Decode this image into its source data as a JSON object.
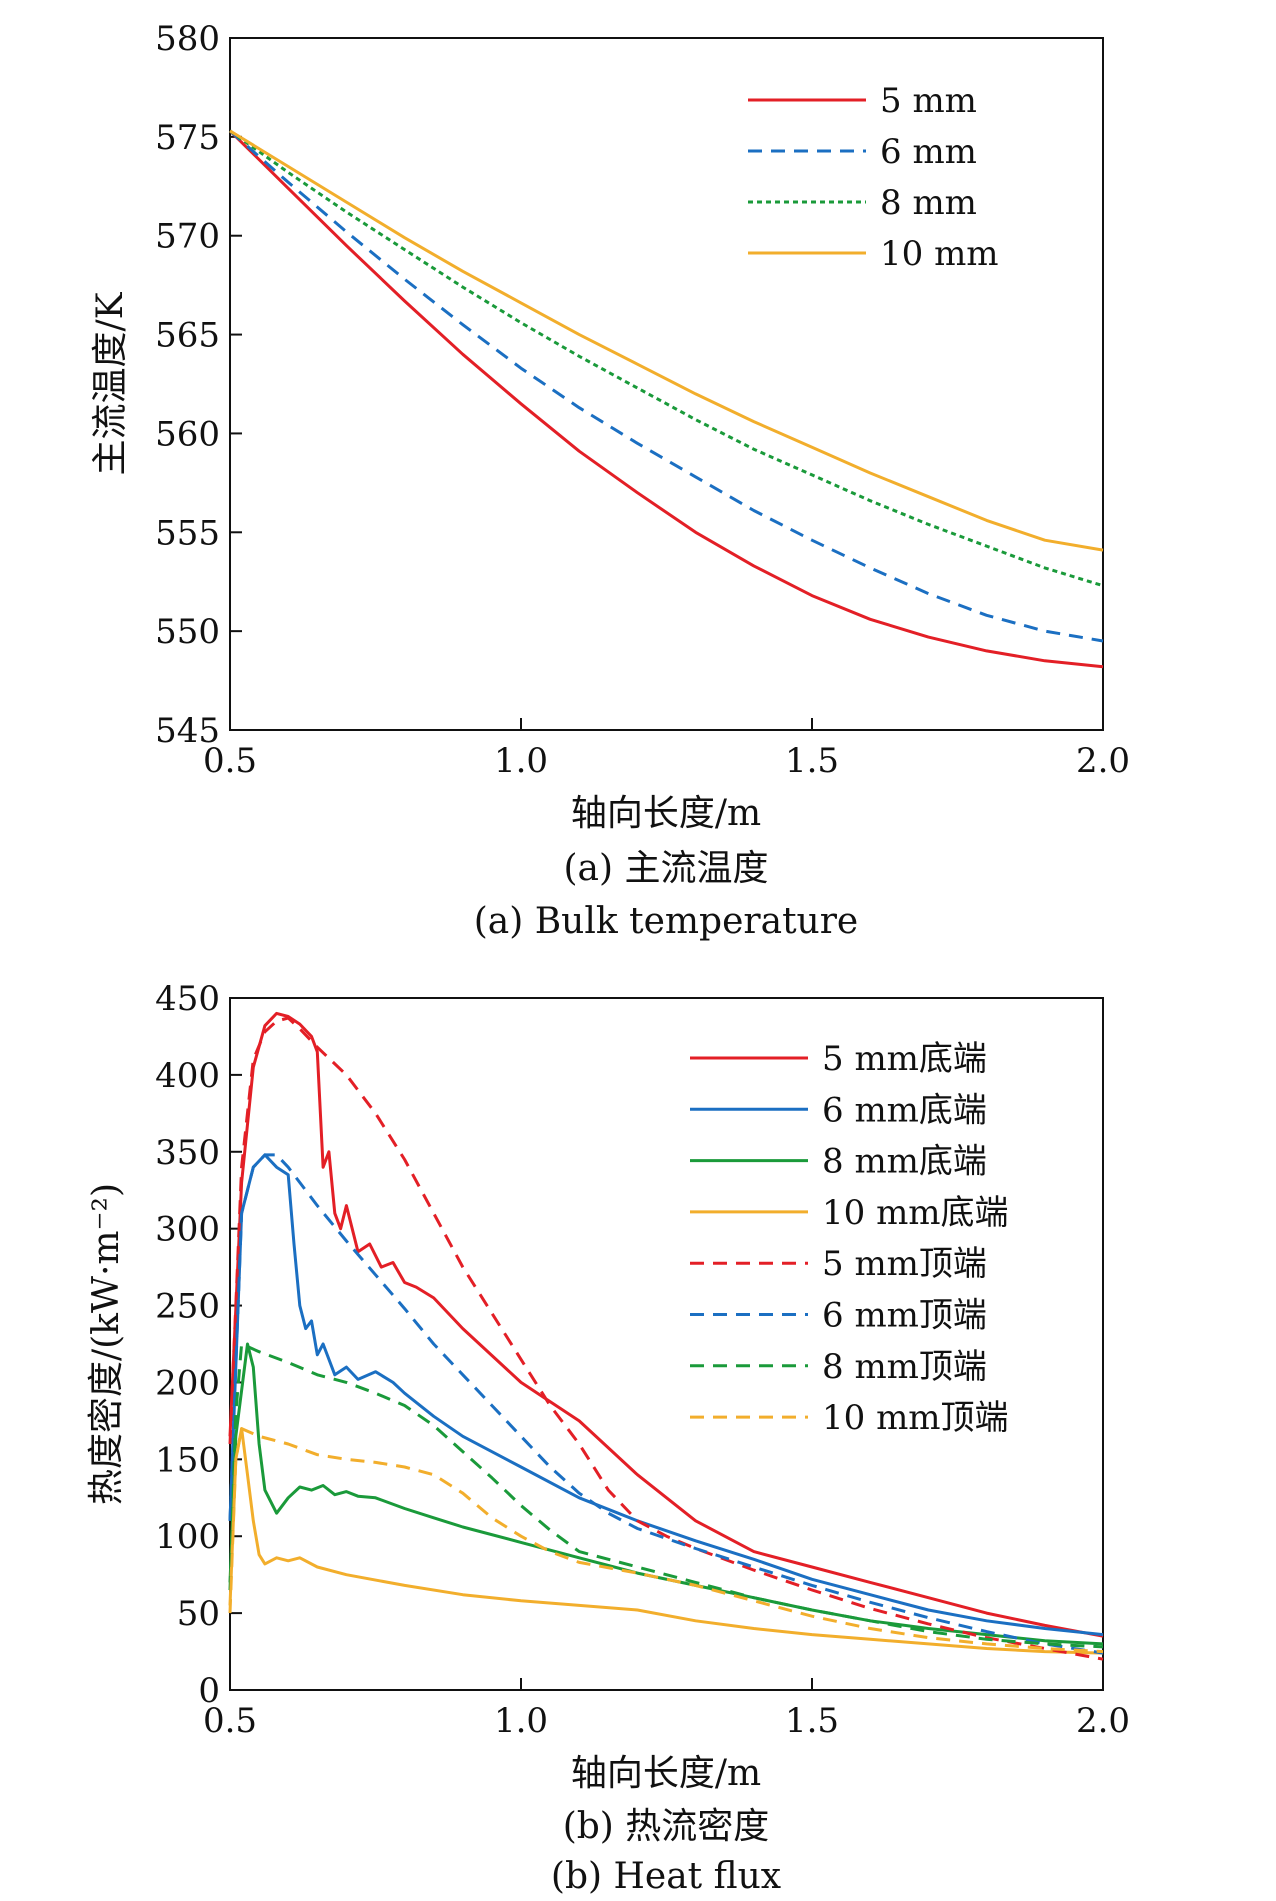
{
  "chart_data": [
    {
      "type": "line",
      "xlabel": "轴向长度/m",
      "ylabel": "主流温度/K",
      "caption_cn": "(a) 主流温度",
      "caption_en": "(a) Bulk temperature",
      "xlim": [
        0.5,
        2.0
      ],
      "ylim": [
        545,
        580
      ],
      "xticks": [
        0.5,
        1.0,
        1.5,
        2.0
      ],
      "xtick_labels": [
        "0.5",
        "1.0",
        "1.5",
        "2.0"
      ],
      "yticks": [
        545,
        550,
        555,
        560,
        565,
        570,
        575,
        580
      ],
      "ytick_labels": [
        "545",
        "550",
        "555",
        "560",
        "565",
        "570",
        "575",
        "580"
      ],
      "grid": false,
      "legend_position": "top-right",
      "series": [
        {
          "name": "5 mm",
          "color": "#e31f26",
          "dash": "solid",
          "x": [
            0.5,
            0.6,
            0.7,
            0.8,
            0.9,
            1.0,
            1.1,
            1.2,
            1.3,
            1.4,
            1.5,
            1.6,
            1.7,
            1.8,
            1.9,
            2.0
          ],
          "y": [
            575.3,
            572.4,
            569.5,
            566.7,
            564.0,
            561.5,
            559.1,
            557.0,
            555.0,
            553.3,
            551.8,
            550.6,
            549.7,
            549.0,
            548.5,
            548.2
          ]
        },
        {
          "name": "6 mm",
          "color": "#1b6fc2",
          "dash": "dashed",
          "x": [
            0.5,
            0.6,
            0.7,
            0.8,
            0.9,
            1.0,
            1.1,
            1.2,
            1.3,
            1.4,
            1.5,
            1.6,
            1.7,
            1.8,
            1.9,
            2.0
          ],
          "y": [
            575.3,
            572.7,
            570.2,
            567.8,
            565.5,
            563.3,
            561.3,
            559.5,
            557.8,
            556.1,
            554.6,
            553.2,
            551.9,
            550.8,
            550.0,
            549.5
          ]
        },
        {
          "name": "8 mm",
          "color": "#1a9a3a",
          "dash": "dotted",
          "x": [
            0.5,
            0.6,
            0.7,
            0.8,
            0.9,
            1.0,
            1.1,
            1.2,
            1.3,
            1.4,
            1.5,
            1.6,
            1.7,
            1.8,
            1.9,
            2.0
          ],
          "y": [
            575.3,
            573.2,
            571.2,
            569.3,
            567.4,
            565.6,
            563.9,
            562.3,
            560.7,
            559.2,
            557.9,
            556.6,
            555.4,
            554.3,
            553.2,
            552.3
          ]
        },
        {
          "name": "10 mm",
          "color": "#f2ae2c",
          "dash": "solid",
          "x": [
            0.5,
            0.6,
            0.7,
            0.8,
            0.9,
            1.0,
            1.1,
            1.2,
            1.3,
            1.4,
            1.5,
            1.6,
            1.7,
            1.8,
            1.9,
            2.0
          ],
          "y": [
            575.3,
            573.5,
            571.7,
            569.9,
            568.2,
            566.6,
            565.0,
            563.5,
            562.0,
            560.6,
            559.3,
            558.0,
            556.8,
            555.6,
            554.6,
            554.1
          ]
        }
      ]
    },
    {
      "type": "line",
      "xlabel": "轴向长度/m",
      "ylabel": "热度密度/(kW·m⁻²)",
      "caption_cn": "(b) 热流密度",
      "caption_en": "(b) Heat flux",
      "xlim": [
        0.5,
        2.0
      ],
      "ylim": [
        0,
        450
      ],
      "xticks": [
        0.5,
        1.0,
        1.5,
        2.0
      ],
      "xtick_labels": [
        "0.5",
        "1.0",
        "1.5",
        "2.0"
      ],
      "yticks": [
        0,
        50,
        100,
        150,
        200,
        250,
        300,
        350,
        400,
        450
      ],
      "ytick_labels": [
        "0",
        "50",
        "100",
        "150",
        "200",
        "250",
        "300",
        "350",
        "400",
        "450"
      ],
      "grid": false,
      "legend_position": "top-right",
      "series": [
        {
          "name": "5 mm底端",
          "color": "#e31f26",
          "dash": "solid",
          "x": [
            0.5,
            0.52,
            0.54,
            0.56,
            0.58,
            0.6,
            0.62,
            0.64,
            0.65,
            0.66,
            0.67,
            0.68,
            0.69,
            0.7,
            0.72,
            0.74,
            0.76,
            0.78,
            0.8,
            0.82,
            0.85,
            0.9,
            1.0,
            1.1,
            1.2,
            1.3,
            1.4,
            1.5,
            1.6,
            1.7,
            1.8,
            1.9,
            2.0
          ],
          "y": [
            165,
            330,
            405,
            432,
            440,
            438,
            433,
            425,
            415,
            340,
            350,
            310,
            300,
            315,
            285,
            290,
            275,
            278,
            265,
            262,
            255,
            235,
            200,
            175,
            140,
            110,
            90,
            80,
            70,
            60,
            50,
            42,
            35
          ]
        },
        {
          "name": "6 mm底端",
          "color": "#1b6fc2",
          "dash": "solid",
          "x": [
            0.5,
            0.52,
            0.54,
            0.56,
            0.58,
            0.6,
            0.61,
            0.62,
            0.63,
            0.64,
            0.65,
            0.66,
            0.68,
            0.7,
            0.72,
            0.75,
            0.78,
            0.8,
            0.85,
            0.9,
            1.0,
            1.1,
            1.2,
            1.3,
            1.4,
            1.5,
            1.6,
            1.7,
            1.8,
            1.9,
            2.0
          ],
          "y": [
            110,
            310,
            340,
            348,
            340,
            335,
            290,
            250,
            235,
            240,
            218,
            225,
            205,
            210,
            202,
            207,
            200,
            193,
            178,
            165,
            145,
            125,
            110,
            97,
            85,
            72,
            62,
            52,
            45,
            40,
            36
          ]
        },
        {
          "name": "8 mm底端",
          "color": "#1a9a3a",
          "dash": "solid",
          "x": [
            0.5,
            0.51,
            0.53,
            0.54,
            0.55,
            0.56,
            0.58,
            0.6,
            0.62,
            0.64,
            0.66,
            0.68,
            0.7,
            0.72,
            0.75,
            0.8,
            0.85,
            0.9,
            1.0,
            1.1,
            1.2,
            1.3,
            1.4,
            1.5,
            1.6,
            1.7,
            1.8,
            1.9,
            2.0
          ],
          "y": [
            70,
            165,
            225,
            210,
            160,
            130,
            115,
            125,
            132,
            130,
            133,
            127,
            129,
            126,
            125,
            118,
            112,
            106,
            96,
            86,
            76,
            68,
            60,
            52,
            45,
            40,
            36,
            32,
            30
          ]
        },
        {
          "name": "10 mm底端",
          "color": "#f2ae2c",
          "dash": "solid",
          "x": [
            0.5,
            0.51,
            0.52,
            0.53,
            0.54,
            0.55,
            0.56,
            0.58,
            0.6,
            0.62,
            0.65,
            0.7,
            0.8,
            0.9,
            1.0,
            1.1,
            1.2,
            1.3,
            1.4,
            1.5,
            1.6,
            1.7,
            1.8,
            1.9,
            2.0
          ],
          "y": [
            55,
            150,
            170,
            140,
            110,
            88,
            82,
            86,
            84,
            86,
            80,
            75,
            68,
            62,
            58,
            55,
            52,
            45,
            40,
            36,
            33,
            30,
            27,
            25,
            24
          ]
        },
        {
          "name": "5 mm顶端",
          "color": "#e31f26",
          "dash": "dashed",
          "x": [
            0.5,
            0.52,
            0.54,
            0.56,
            0.58,
            0.6,
            0.62,
            0.65,
            0.7,
            0.75,
            0.8,
            0.85,
            0.9,
            0.95,
            1.0,
            1.05,
            1.1,
            1.15,
            1.2,
            1.25,
            1.3,
            1.4,
            1.5,
            1.6,
            1.7,
            1.8,
            1.9,
            2.0
          ],
          "y": [
            160,
            340,
            410,
            428,
            435,
            437,
            430,
            418,
            400,
            375,
            345,
            310,
            275,
            245,
            215,
            185,
            160,
            130,
            110,
            100,
            92,
            78,
            65,
            53,
            43,
            34,
            27,
            20
          ]
        },
        {
          "name": "6 mm顶端",
          "color": "#1b6fc2",
          "dash": "dashed",
          "x": [
            0.5,
            0.52,
            0.54,
            0.56,
            0.58,
            0.6,
            0.62,
            0.65,
            0.7,
            0.75,
            0.8,
            0.85,
            0.9,
            0.95,
            1.0,
            1.05,
            1.1,
            1.15,
            1.2,
            1.3,
            1.4,
            1.5,
            1.6,
            1.7,
            1.8,
            1.9,
            2.0
          ],
          "y": [
            110,
            310,
            340,
            348,
            348,
            340,
            330,
            315,
            292,
            270,
            248,
            225,
            205,
            185,
            165,
            145,
            128,
            115,
            105,
            92,
            80,
            68,
            57,
            47,
            38,
            30,
            24
          ]
        },
        {
          "name": "8 mm顶端",
          "color": "#1a9a3a",
          "dash": "dashed",
          "x": [
            0.5,
            0.51,
            0.52,
            0.55,
            0.6,
            0.65,
            0.7,
            0.75,
            0.8,
            0.85,
            0.9,
            0.95,
            1.0,
            1.05,
            1.1,
            1.2,
            1.3,
            1.4,
            1.5,
            1.6,
            1.7,
            1.8,
            1.9,
            2.0
          ],
          "y": [
            65,
            180,
            225,
            220,
            213,
            205,
            200,
            193,
            185,
            172,
            155,
            138,
            120,
            104,
            90,
            80,
            70,
            60,
            52,
            45,
            38,
            33,
            30,
            28
          ]
        },
        {
          "name": "10 mm顶端",
          "color": "#f2ae2c",
          "dash": "dashed",
          "x": [
            0.5,
            0.51,
            0.52,
            0.55,
            0.6,
            0.65,
            0.7,
            0.75,
            0.8,
            0.85,
            0.9,
            0.95,
            1.0,
            1.05,
            1.1,
            1.2,
            1.3,
            1.4,
            1.5,
            1.6,
            1.7,
            1.8,
            1.9,
            2.0
          ],
          "y": [
            50,
            150,
            170,
            165,
            160,
            153,
            150,
            148,
            145,
            140,
            128,
            112,
            100,
            90,
            83,
            76,
            68,
            58,
            48,
            40,
            34,
            30,
            27,
            25
          ]
        }
      ]
    }
  ]
}
